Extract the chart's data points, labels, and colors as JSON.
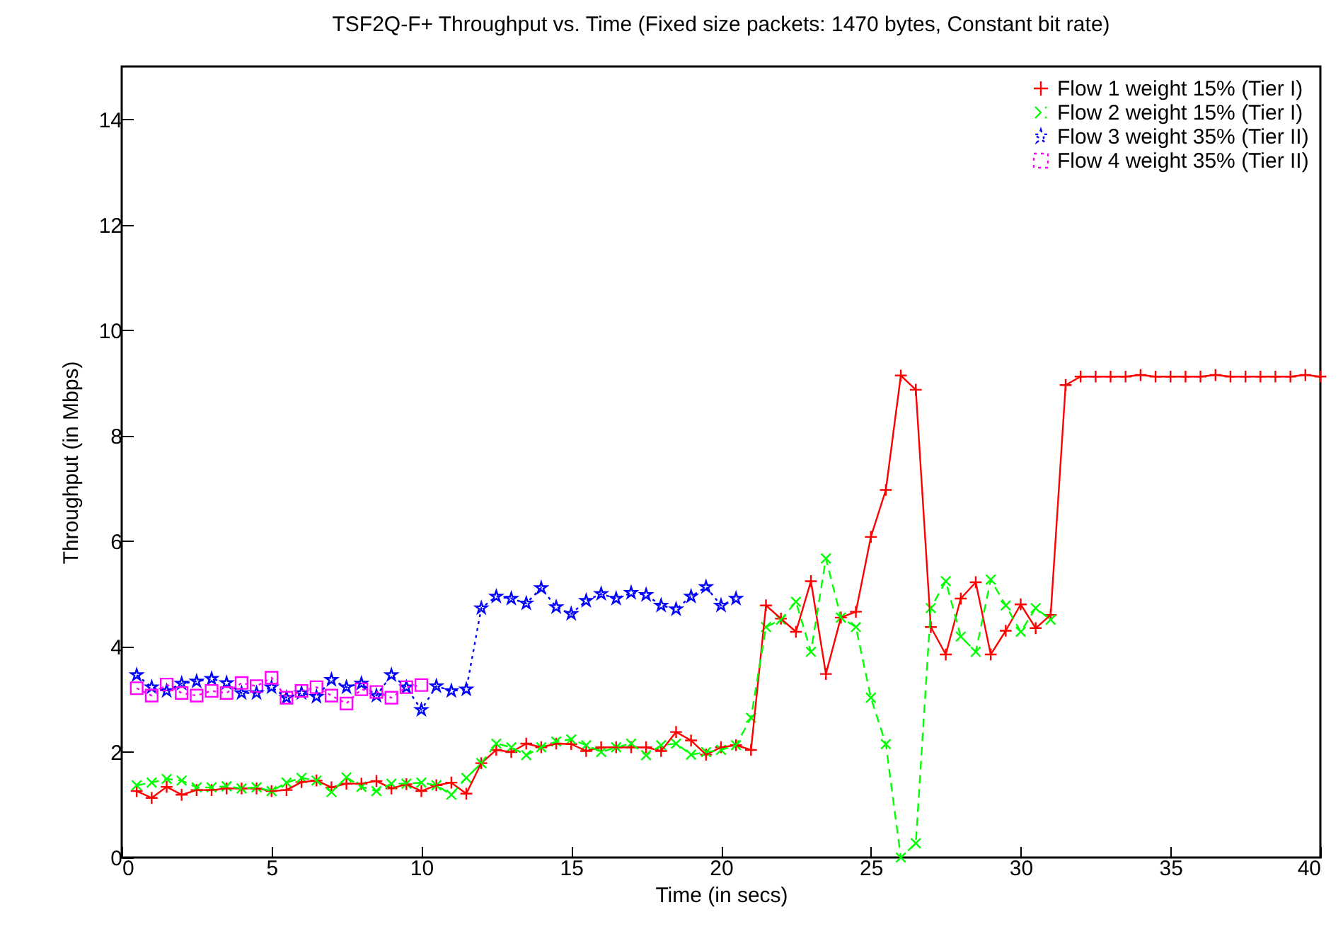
{
  "chart_data": {
    "type": "line",
    "title": "TSF2Q-F+ Throughput vs. Time (Fixed size packets: 1470 bytes, Constant bit rate)",
    "xlabel": "Time (in secs)",
    "ylabel": "Throughput (in Mbps)",
    "xlim": [
      0,
      40
    ],
    "xticks": [
      0,
      5,
      10,
      15,
      20,
      25,
      30,
      35,
      40
    ],
    "ylim": [
      0,
      15
    ],
    "yticks": [
      0,
      2,
      4,
      6,
      8,
      10,
      12,
      14
    ],
    "grid": false,
    "legend": "top right",
    "series": [
      {
        "name": "Flow 1 weight 15% (Tier I)",
        "color": "#ff0000",
        "marker": "cross",
        "line_style": "solid",
        "x": [
          0.5,
          1,
          1.5,
          2,
          2.5,
          3,
          3.5,
          4,
          4.5,
          5,
          5.5,
          6,
          6.5,
          7,
          7.5,
          8,
          8.5,
          9,
          9.5,
          10,
          10.5,
          11,
          11.5,
          12,
          12.5,
          13,
          13.5,
          14,
          14.5,
          15,
          15.5,
          16,
          16.5,
          17,
          17.5,
          18,
          18.5,
          19,
          19.5,
          20,
          20.5,
          21,
          21.5,
          22,
          22.5,
          23,
          23.5,
          24,
          24.5,
          25,
          25.5,
          26,
          26.5,
          27,
          27.5,
          28,
          28.5,
          29,
          29.5,
          30,
          30.5,
          31,
          31.5,
          32,
          32.5,
          33,
          33.5,
          34,
          34.5,
          35,
          35.5,
          36,
          36.5,
          37,
          37.5,
          38,
          38.5,
          39,
          39.5,
          40
        ],
        "values": [
          1.26,
          1.13,
          1.34,
          1.19,
          1.28,
          1.28,
          1.31,
          1.31,
          1.31,
          1.26,
          1.28,
          1.43,
          1.46,
          1.33,
          1.4,
          1.4,
          1.45,
          1.31,
          1.39,
          1.26,
          1.37,
          1.42,
          1.21,
          1.79,
          2.04,
          2.0,
          2.16,
          2.09,
          2.16,
          2.15,
          2.02,
          2.09,
          2.09,
          2.09,
          2.09,
          2.02,
          2.38,
          2.22,
          1.95,
          2.09,
          2.13,
          2.04,
          4.78,
          4.53,
          4.28,
          5.24,
          3.48,
          4.55,
          4.66,
          6.08,
          6.97,
          9.14,
          8.87,
          4.37,
          3.85,
          4.91,
          5.22,
          3.85,
          4.3,
          4.8,
          4.35,
          4.6,
          8.96,
          9.12,
          9.12,
          9.12,
          9.12,
          9.15,
          9.12,
          9.12,
          9.12,
          9.12,
          9.15,
          9.12,
          9.12,
          9.12,
          9.12,
          9.12,
          9.15,
          9.12
        ]
      },
      {
        "name": "Flow 2 weight 15% (Tier I)",
        "color": "#00ff00",
        "marker": "x",
        "line_style": "dashed",
        "x": [
          0.5,
          1,
          1.5,
          2,
          2.5,
          3,
          3.5,
          4,
          4.5,
          5,
          5.5,
          6,
          6.5,
          7,
          7.5,
          8,
          8.5,
          9,
          9.5,
          10,
          10.5,
          11,
          11.5,
          12,
          12.5,
          13,
          13.5,
          14,
          14.5,
          15,
          15.5,
          16,
          16.5,
          17,
          17.5,
          18,
          18.5,
          19,
          19.5,
          20,
          20.5,
          21,
          21.5,
          22,
          22.5,
          23,
          23.5,
          24,
          24.5,
          25,
          25.5,
          26,
          26.5,
          27,
          27.5,
          28,
          28.5,
          29,
          29.5,
          30,
          30.5,
          31
        ],
        "values": [
          1.37,
          1.42,
          1.49,
          1.46,
          1.33,
          1.33,
          1.35,
          1.31,
          1.33,
          1.26,
          1.42,
          1.51,
          1.46,
          1.24,
          1.52,
          1.34,
          1.26,
          1.4,
          1.4,
          1.42,
          1.37,
          1.19,
          1.51,
          1.79,
          2.16,
          2.09,
          1.94,
          2.09,
          2.2,
          2.24,
          2.13,
          2.0,
          2.09,
          2.16,
          1.94,
          2.13,
          2.16,
          1.95,
          2.0,
          2.04,
          2.13,
          2.65,
          4.37,
          4.51,
          4.85,
          3.9,
          5.67,
          4.55,
          4.37,
          3.03,
          2.15,
          0,
          0.27,
          4.73,
          5.24,
          4.19,
          3.9,
          5.27,
          4.78,
          4.28,
          4.73,
          4.51
        ]
      },
      {
        "name": "Flow 3 weight 35% (Tier II)",
        "color": "#0000ff",
        "marker": "star",
        "line_style": "dotted",
        "x": [
          0.5,
          1,
          1.5,
          2,
          2.5,
          3,
          3.5,
          4,
          4.5,
          5,
          5.5,
          6,
          6.5,
          7,
          7.5,
          8,
          8.5,
          9,
          9.5,
          10,
          10.5,
          11,
          11.5,
          12,
          12.5,
          13,
          13.5,
          14,
          14.5,
          15,
          15.5,
          16,
          16.5,
          17,
          17.5,
          18,
          18.5,
          19,
          19.5,
          20,
          20.5
        ],
        "values": [
          3.46,
          3.23,
          3.16,
          3.3,
          3.34,
          3.39,
          3.31,
          3.12,
          3.12,
          3.23,
          3.03,
          3.12,
          3.05,
          3.37,
          3.23,
          3.3,
          3.07,
          3.46,
          3.23,
          2.8,
          3.25,
          3.16,
          3.19,
          4.73,
          4.95,
          4.91,
          4.82,
          5.11,
          4.75,
          4.62,
          4.87,
          5.0,
          4.91,
          5.02,
          4.98,
          4.78,
          4.71,
          4.95,
          5.13,
          4.78,
          4.91
        ]
      },
      {
        "name": "Flow 4 weight 35% (Tier II)",
        "color": "#ff00ff",
        "marker": "square",
        "line_style": "dotted",
        "x": [
          0.5,
          1,
          1.5,
          2,
          2.5,
          3,
          3.5,
          4,
          4.5,
          5,
          5.5,
          6,
          6.5,
          7,
          7.5,
          8,
          8.5,
          9,
          9.5,
          10
        ],
        "values": [
          3.21,
          3.07,
          3.28,
          3.12,
          3.07,
          3.16,
          3.12,
          3.31,
          3.25,
          3.41,
          3.03,
          3.16,
          3.23,
          3.07,
          2.92,
          3.19,
          3.14,
          3.03,
          3.23,
          3.27
        ]
      }
    ]
  }
}
